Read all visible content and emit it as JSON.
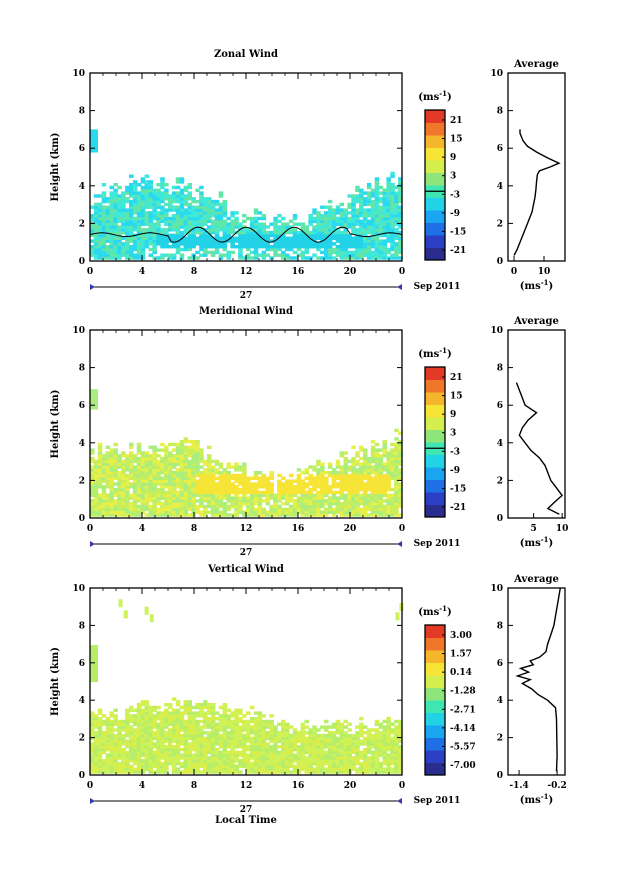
{
  "colors": {
    "scale": [
      "#2a2d8e",
      "#2a3fc4",
      "#1f6fe6",
      "#1aa5f0",
      "#22d2e6",
      "#3fe6b2",
      "#8ee67a",
      "#d4ee4e",
      "#f6e436",
      "#f6b62c",
      "#f0762a",
      "#e23a26"
    ],
    "zonal_echo": [
      "#40e8d8",
      "#62e6a8",
      "#2ad8f0"
    ],
    "meridional_echo": [
      "#c8ee5c",
      "#e6f048",
      "#aaee7e"
    ],
    "vertical_echo": [
      "#cdf25a",
      "#d9ee48",
      "#b6ee6a"
    ]
  },
  "x_label": "Local Time",
  "date_day": "27",
  "date_label": "Sep 2011",
  "unit_label": "(ms",
  "unit_sup": "-1",
  "unit_paren": ")",
  "panels": [
    {
      "title": "Zonal Wind",
      "ylabel": "Height (km)",
      "avg_title": "Average",
      "avg_xlabel_main": "(ms",
      "colorbar_ticks": [
        "21",
        "15",
        "9",
        "3",
        "-3",
        "-9",
        "-15",
        "-21"
      ]
    },
    {
      "title": "Meridional Wind",
      "ylabel": "Height (km)",
      "avg_title": "Average",
      "avg_xlabel_main": "(ms",
      "colorbar_ticks": [
        "21",
        "15",
        "9",
        "3",
        "-3",
        "-9",
        "-15",
        "-21"
      ]
    },
    {
      "title": "Vertical Wind",
      "ylabel": "Height (km)",
      "avg_title": "Average",
      "avg_xlabel_main": "(ms",
      "colorbar_ticks": [
        "3.00",
        "1.57",
        "0.14",
        "-1.28",
        "-2.71",
        "-4.14",
        "-5.57",
        "-7.00"
      ]
    }
  ],
  "chart_data": [
    {
      "type": "heatmap",
      "title": "Zonal Wind",
      "ylabel": "Height (km)",
      "xticks": [
        "0",
        "4",
        "8",
        "12",
        "16",
        "20",
        "0"
      ],
      "yticks": [
        "0",
        "2",
        "4",
        "6",
        "8",
        "10"
      ],
      "xlim": [
        0,
        24
      ],
      "ylim": [
        0,
        10
      ],
      "colorbar": {
        "unit": "(ms-1)",
        "ticks": [
          21,
          15,
          9,
          3,
          -3,
          -9,
          -15,
          -21
        ]
      },
      "echo_layer_km": [
        0,
        4.2
      ],
      "isolated_echo_km": [
        5.8,
        6.8
      ],
      "zero_contour_km": 1.4
    },
    {
      "type": "line",
      "title": "Average",
      "xticks": [
        "0",
        "10"
      ],
      "yticks": [
        "0",
        "2",
        "4",
        "6",
        "8",
        "10"
      ],
      "xlim": [
        -2,
        17
      ],
      "ylim": [
        0,
        10
      ],
      "xlabel": "(ms-1)",
      "y": [
        0.3,
        0.6,
        1.0,
        1.4,
        1.8,
        2.2,
        2.6,
        3.0,
        3.4,
        3.8,
        4.2,
        4.6,
        4.8,
        5.0,
        5.2,
        5.5,
        5.8,
        6.1,
        6.4,
        6.8,
        7.0
      ],
      "x": [
        0.0,
        1.0,
        2.0,
        3.0,
        4.0,
        5.0,
        6.0,
        6.5,
        7.0,
        7.3,
        7.5,
        7.8,
        8.5,
        12.0,
        15.0,
        11.0,
        7.5,
        4.5,
        3.0,
        2.0,
        2.0
      ]
    },
    {
      "type": "heatmap",
      "title": "Meridional Wind",
      "ylabel": "Height (km)",
      "xticks": [
        "0",
        "4",
        "8",
        "12",
        "16",
        "20",
        "0"
      ],
      "yticks": [
        "0",
        "2",
        "4",
        "6",
        "8",
        "10"
      ],
      "xlim": [
        0,
        24
      ],
      "ylim": [
        0,
        10
      ],
      "colorbar": {
        "unit": "(ms-1)",
        "ticks": [
          21,
          15,
          9,
          3,
          -3,
          -9,
          -15,
          -21
        ]
      },
      "echo_layer_km": [
        0,
        4.2
      ],
      "strong_band_km": [
        1.2,
        2.2
      ]
    },
    {
      "type": "line",
      "title": "Average",
      "xticks": [
        "5",
        "10"
      ],
      "yticks": [
        "0",
        "2",
        "4",
        "6",
        "8",
        "10"
      ],
      "xlim": [
        0.5,
        10.5
      ],
      "ylim": [
        0,
        10
      ],
      "xlabel": "(ms-1)",
      "y": [
        0.2,
        0.5,
        0.8,
        1.2,
        1.6,
        2.0,
        2.4,
        2.8,
        3.2,
        3.6,
        4.0,
        4.4,
        4.8,
        5.2,
        5.6,
        6.0,
        6.4,
        6.8,
        7.2
      ],
      "x": [
        9.5,
        7.5,
        8.5,
        10.0,
        9.0,
        8.0,
        7.5,
        7.0,
        6.0,
        4.5,
        3.5,
        2.5,
        3.0,
        4.0,
        5.5,
        3.5,
        3.0,
        2.5,
        2.0
      ]
    },
    {
      "type": "heatmap",
      "title": "Vertical Wind",
      "ylabel": "Height (km)",
      "xticks": [
        "0",
        "4",
        "8",
        "12",
        "16",
        "20",
        "0"
      ],
      "yticks": [
        "0",
        "2",
        "4",
        "6",
        "8",
        "10"
      ],
      "xlim": [
        0,
        24
      ],
      "ylim": [
        0,
        10
      ],
      "colorbar": {
        "unit": "(ms-1)",
        "ticks": [
          3.0,
          1.57,
          0.14,
          -1.28,
          -2.71,
          -4.14,
          -5.57,
          -7.0
        ]
      },
      "echo_layer_km": [
        0,
        4.0
      ],
      "isolated_echo_km": [
        5.0,
        7.0
      ]
    },
    {
      "type": "line",
      "title": "Average",
      "xticks": [
        "-1.4",
        "-0.2"
      ],
      "yticks": [
        "0",
        "2",
        "4",
        "6",
        "8",
        "10"
      ],
      "xlim": [
        -1.75,
        0.05
      ],
      "ylim": [
        0,
        10
      ],
      "xlabel": "(ms-1)",
      "y": [
        0.2,
        1.0,
        2.0,
        3.0,
        3.6,
        4.0,
        4.3,
        4.6,
        4.9,
        5.1,
        5.3,
        5.5,
        5.7,
        5.9,
        6.1,
        6.3,
        6.6,
        7.0,
        7.5,
        8.0,
        8.5,
        9.0,
        9.5,
        10.0
      ],
      "x": [
        -0.22,
        -0.2,
        -0.21,
        -0.22,
        -0.25,
        -0.5,
        -0.8,
        -1.0,
        -1.3,
        -1.05,
        -1.45,
        -1.1,
        -1.35,
        -0.95,
        -1.05,
        -0.75,
        -0.55,
        -0.5,
        -0.4,
        -0.3,
        -0.25,
        -0.2,
        -0.15,
        -0.1
      ]
    }
  ]
}
